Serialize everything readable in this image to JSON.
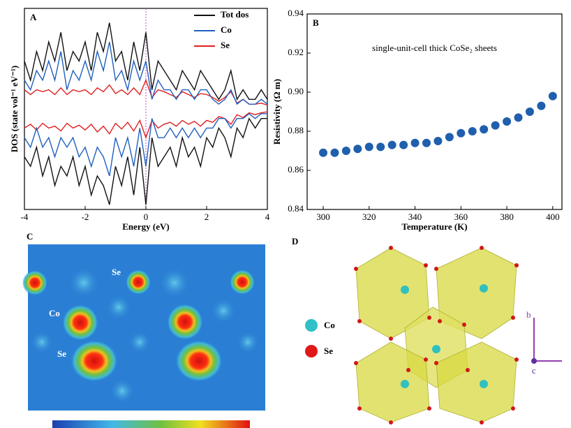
{
  "chart_data": [
    {
      "type": "line",
      "label": "A",
      "xlabel": "Energy (eV)",
      "ylabel": "DOS (state vol⁻¹ eV⁻¹)",
      "x": [
        -4,
        -3.8,
        -3.6,
        -3.4,
        -3.2,
        -3,
        -2.8,
        -2.6,
        -2.4,
        -2.2,
        -2,
        -1.8,
        -1.6,
        -1.4,
        -1.2,
        -1,
        -0.8,
        -0.6,
        -0.4,
        -0.2,
        0,
        0.2,
        0.4,
        0.6,
        0.8,
        1,
        1.2,
        1.4,
        1.6,
        1.8,
        2,
        2.2,
        2.4,
        2.6,
        2.8,
        3,
        3.2,
        3.4,
        3.6,
        3.8,
        4
      ],
      "xlim": [
        -4,
        4
      ],
      "xticks": [
        -4,
        -2,
        0,
        2,
        4
      ],
      "ylim": [
        -10.5,
        10.5
      ],
      "vline": 0,
      "legend": "upper right",
      "series": [
        {
          "name": "Tot dos",
          "color": "#111111",
          "values": [
            5,
            3,
            6,
            4,
            7,
            5,
            8,
            4,
            6,
            5,
            7,
            4,
            8,
            6,
            9,
            5,
            6,
            3,
            7,
            4,
            8,
            2,
            5,
            4,
            3,
            2,
            4,
            3,
            2,
            4,
            3,
            2,
            1,
            2,
            4,
            1,
            2,
            1,
            1,
            2,
            1
          ],
          "values_down": [
            -5,
            -6,
            -4,
            -7,
            -5,
            -8,
            -6,
            -7,
            -5,
            -8,
            -6,
            -9,
            -7,
            -8,
            -10,
            -6,
            -8,
            -5,
            -9,
            -4,
            -10,
            -3,
            -6,
            -5,
            -4,
            -6,
            -3,
            -5,
            -4,
            -6,
            -3,
            -4,
            -2,
            -3,
            -5,
            -2,
            -3,
            -1,
            -2,
            -1,
            -1
          ]
        },
        {
          "name": "Co",
          "color": "#1f5fbf",
          "values": [
            3,
            2,
            4,
            3,
            5,
            3,
            6,
            2,
            4,
            3,
            5,
            3,
            6,
            4,
            7,
            3,
            4,
            2,
            5,
            3,
            5,
            1,
            3,
            2,
            2,
            1,
            2,
            2,
            1,
            2,
            2,
            1,
            0.5,
            1,
            2,
            0.5,
            1,
            0.5,
            0.5,
            1,
            0.5
          ],
          "values_down": [
            -3,
            -4,
            -2,
            -4,
            -3,
            -5,
            -3,
            -4,
            -3,
            -5,
            -4,
            -6,
            -4,
            -5,
            -7,
            -3,
            -5,
            -3,
            -6,
            -2,
            -6,
            -1,
            -3,
            -3,
            -2,
            -3,
            -2,
            -3,
            -2,
            -3,
            -2,
            -2,
            -1,
            -1,
            -2,
            -1,
            -1,
            -0.5,
            -1,
            -0.5,
            -0.5
          ]
        },
        {
          "name": "Se",
          "color": "#e02020",
          "values": [
            2,
            1.5,
            2,
            1.8,
            2,
            1.5,
            2.2,
            1.5,
            2,
            1.8,
            2,
            1.5,
            2.2,
            1.8,
            2.5,
            1.6,
            2,
            1.5,
            2.2,
            1.5,
            3,
            1.2,
            2,
            1.8,
            1.5,
            1.2,
            1.8,
            1.5,
            1.2,
            1.6,
            1.5,
            1.2,
            0.8,
            1.2,
            1.8,
            0.6,
            1,
            0.5,
            0.5,
            0.6,
            0.4
          ],
          "values_down": [
            -2,
            -1.6,
            -2.2,
            -1.5,
            -2,
            -1.8,
            -2.3,
            -1.5,
            -2,
            -1.7,
            -2.2,
            -1.6,
            -2.4,
            -1.8,
            -2.6,
            -1.5,
            -2.1,
            -1.4,
            -2.3,
            -1.2,
            -3,
            -1.2,
            -2,
            -1.6,
            -1.4,
            -1.8,
            -1.2,
            -1.6,
            -1.3,
            -1.8,
            -1.2,
            -1.4,
            -0.8,
            -1,
            -1.6,
            -0.6,
            -0.9,
            -0.4,
            -0.6,
            -0.4,
            -0.3
          ]
        }
      ]
    },
    {
      "type": "scatter",
      "label": "B",
      "xlabel": "Temperature (K)",
      "ylabel": "Resistivity (Ω m)",
      "annotation": "single-unit-cell thick CoSe₂ sheets",
      "color": "#1f5fad",
      "x": [
        300,
        305,
        310,
        315,
        320,
        325,
        330,
        335,
        340,
        345,
        350,
        355,
        360,
        365,
        370,
        375,
        380,
        385,
        390,
        395,
        400
      ],
      "values": [
        0.869,
        0.869,
        0.87,
        0.871,
        0.872,
        0.872,
        0.873,
        0.873,
        0.874,
        0.874,
        0.875,
        0.877,
        0.879,
        0.88,
        0.881,
        0.883,
        0.885,
        0.887,
        0.89,
        0.893,
        0.898
      ],
      "xlim": [
        293,
        404
      ],
      "xticks": [
        300,
        320,
        340,
        360,
        380,
        400
      ],
      "ylim": [
        0.84,
        0.94
      ],
      "yticks": [
        0.84,
        0.86,
        0.88,
        {
          "value": 0.9,
          "label": "0.90"
        },
        0.92,
        0.94
      ]
    }
  ],
  "panel_c": {
    "label": "C",
    "annotations": [
      "Se",
      "Co",
      "Se"
    ]
  },
  "panel_d": {
    "label": "D",
    "legend": [
      "Co",
      "Se"
    ],
    "axes": [
      "b",
      "c"
    ]
  }
}
